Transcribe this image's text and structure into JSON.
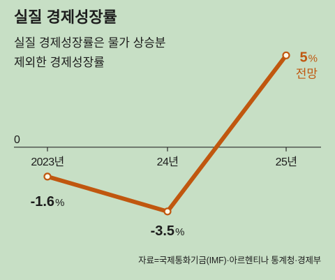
{
  "title": "실질 경제성장률",
  "subtitle": [
    "실질 경제성장률은 물가 상승분",
    "제외한 경제성장률"
  ],
  "source": "자료=국제통화기금(IMF)·아르헨티나 통계청·경제부",
  "colors": {
    "background": "#c7dfc5",
    "text": "#1c1c1c",
    "axis": "#2b2b2b",
    "line": "#c0570f",
    "point_fill": "#fdf7e7"
  },
  "chart_data": {
    "type": "line",
    "title": "실질 경제성장률",
    "categories": [
      "2023년",
      "24년",
      "25년"
    ],
    "values": [
      -1.6,
      -3.5,
      5
    ],
    "data_labels": [
      "-1.6%",
      "-3.5%",
      "5%"
    ],
    "annotations": [
      {
        "category": "25년",
        "text": "전망"
      }
    ],
    "y_zero_label": "0",
    "ylim": [
      -4,
      6
    ],
    "grid": false,
    "legend": "none"
  }
}
